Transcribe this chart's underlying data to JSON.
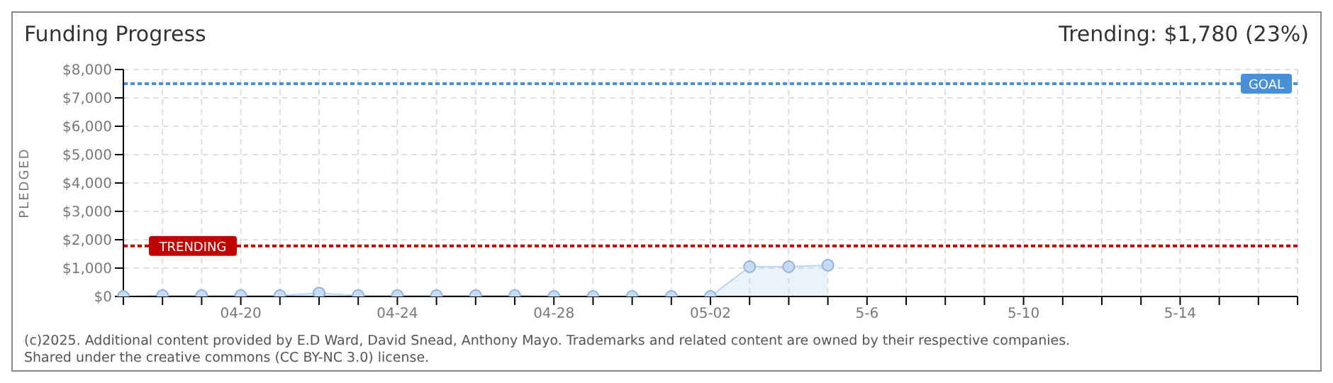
{
  "chart_data": {
    "type": "area",
    "title": "Funding Progress",
    "subtitle": "Trending: $1,780 (23%)",
    "ylabel": "PLEDGED",
    "categories": [
      null,
      null,
      null,
      "04-20",
      null,
      null,
      null,
      "04-24",
      null,
      null,
      null,
      "04-28",
      null,
      null,
      null,
      "05-02",
      null,
      null,
      null,
      "5-6",
      null,
      null,
      null,
      "5-10",
      null,
      null,
      null,
      "5-14",
      null,
      null,
      null
    ],
    "series": [
      {
        "color": "#b8d4f0",
        "values": [
          0,
          30,
          30,
          30,
          30,
          120,
          30,
          30,
          30,
          30,
          30,
          0,
          0,
          0,
          0,
          0,
          1050,
          1050,
          1100,
          null,
          null,
          null,
          null,
          null,
          null,
          null,
          null,
          null,
          null,
          null,
          null
        ]
      }
    ],
    "ylim": [
      0,
      8000
    ],
    "yticks": [
      {
        "value": 0,
        "label": "$0"
      },
      {
        "value": 1000,
        "label": "$1,000"
      },
      {
        "value": 2000,
        "label": "$2,000"
      },
      {
        "value": 3000,
        "label": "$3,000"
      },
      {
        "value": 4000,
        "label": "$4,000"
      },
      {
        "value": 5000,
        "label": "$5,000"
      },
      {
        "value": 6000,
        "label": "$6,000"
      },
      {
        "value": 7000,
        "label": "$7,000"
      },
      {
        "value": 8000,
        "label": "$8,000"
      }
    ],
    "ref_lines": [
      {
        "axis": "y",
        "value": 7500,
        "label": "GOAL",
        "color": "#4a90d9",
        "line_style": "dotted"
      },
      {
        "axis": "y",
        "value": 1780,
        "label": "TRENDING",
        "color": "#c00000",
        "line_style": "dotted"
      }
    ],
    "grid": true,
    "legend": false,
    "marker": "circle",
    "line_style": "solid",
    "annotations": [
      "(c)2025. Additional content provided by E.D Ward, David Snead, Anthony Mayo. Trademarks and related content are owned by their respective companies.",
      "Shared under the creative commons (CC BY-NC 3.0) license."
    ]
  }
}
